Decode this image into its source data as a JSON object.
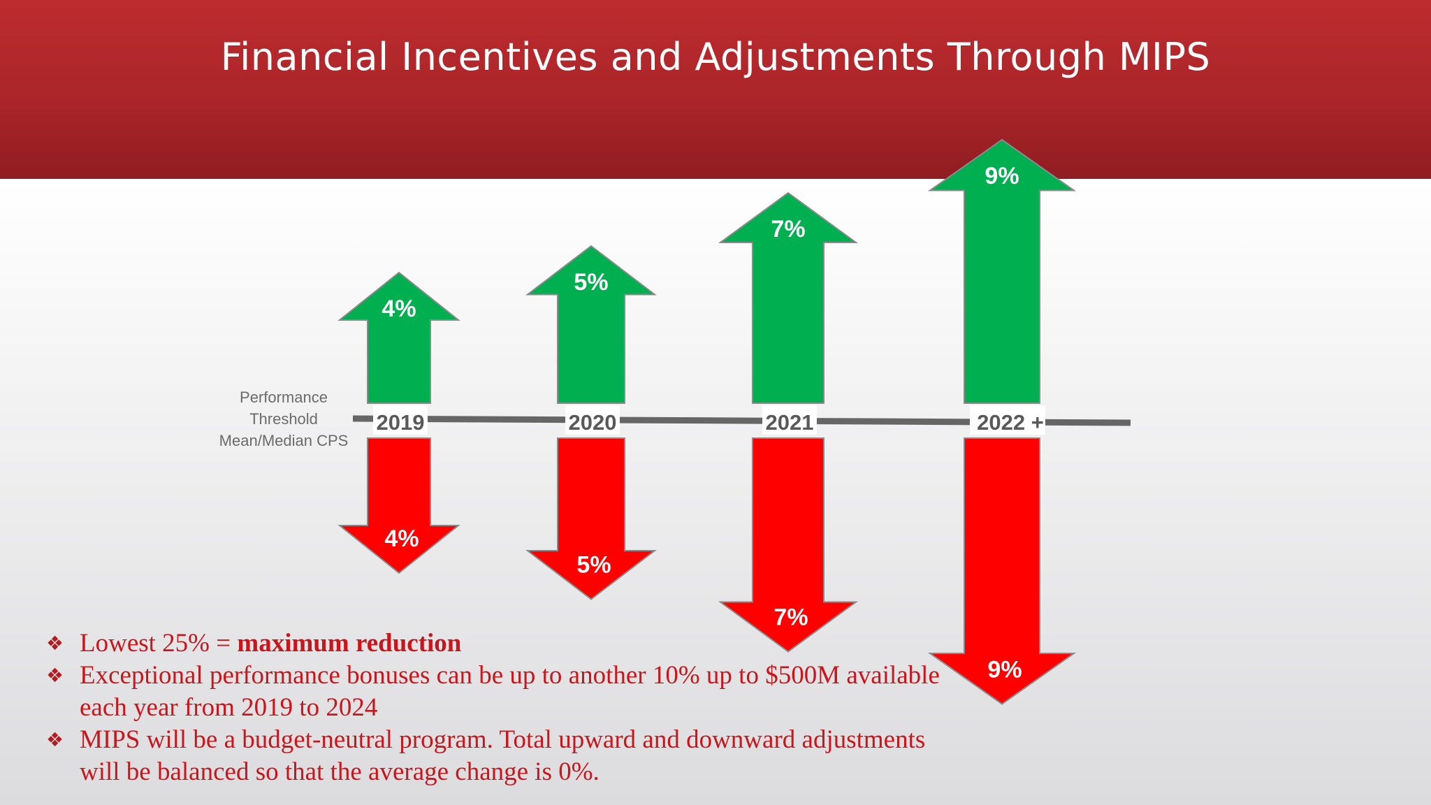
{
  "title": "Financial Incentives and Adjustments Through MIPS",
  "threshold_label": [
    "Performance",
    "Threshold",
    "Mean/Median CPS"
  ],
  "colors": {
    "up": "#00b050",
    "down": "#ff0000",
    "header": "#b0282c",
    "line": "#666666",
    "text": "#c8161d"
  },
  "chart_data": {
    "type": "bar",
    "categories": [
      "2019",
      "2020",
      "2021",
      "2022 +"
    ],
    "series": [
      {
        "values": [
          4,
          5,
          7,
          9
        ],
        "labels": [
          "4%",
          "5%",
          "7%",
          "9%"
        ]
      },
      {
        "values": [
          4,
          5,
          7,
          9
        ],
        "labels": [
          "4%",
          "5%",
          "7%",
          "9%"
        ]
      }
    ]
  },
  "bullets": [
    {
      "text": "Lowest 25% = ",
      "strong": "maximum reduction"
    },
    {
      "text": "Exceptional performance bonuses can be up to another 10% up to $500M available each year from 2019 to 2024",
      "strong": ""
    },
    {
      "text": "MIPS will be a budget-neutral program. Total upward and downward adjustments will be balanced so that the average change is 0%.",
      "strong": ""
    }
  ]
}
